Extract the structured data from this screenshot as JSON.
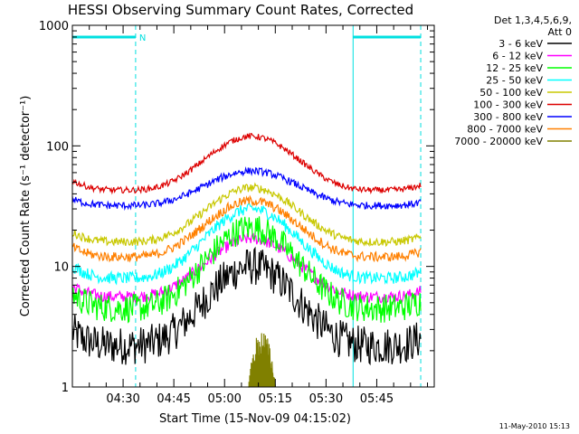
{
  "chart_data": {
    "type": "line",
    "title": "HESSI Observing Summary Count Rates, Corrected",
    "xlabel": "Start Time (15-Nov-09 04:15:02)",
    "ylabel": "Corrected Count Rate (s⁻¹ detector⁻¹)",
    "y_scale": "log",
    "ylim": [
      1,
      1000
    ],
    "xlim_min": [
      0,
      107
    ],
    "x_tick_labels": [
      "04:30",
      "04:45",
      "05:00",
      "05:15",
      "05:30",
      "05:45"
    ],
    "x_tick_values_min": [
      15,
      30,
      45,
      60,
      75,
      90
    ],
    "y_tick_labels": [
      "1",
      "10",
      "100",
      "1000"
    ],
    "y_tick_values": [
      1,
      10,
      100,
      1000
    ],
    "legend": {
      "header": [
        "Det 1,3,4,5,6,9,",
        "Att 0"
      ],
      "placement": "right"
    },
    "series": [
      {
        "name": "3 - 6 keV",
        "color": "#000000",
        "min": 2.2,
        "max": 10,
        "noise": 0.16
      },
      {
        "name": "6 - 12 keV",
        "color": "#ff00ff",
        "min": 5.6,
        "max": 17,
        "noise": 0.05
      },
      {
        "name": "12 - 25 keV",
        "color": "#00ff00",
        "min": 4.5,
        "max": 21,
        "noise": 0.12
      },
      {
        "name": "25 - 50 keV",
        "color": "#00ffff",
        "min": 8.0,
        "max": 30,
        "noise": 0.05
      },
      {
        "name": "50 - 100 keV",
        "color": "#c8c800",
        "min": 16,
        "max": 45,
        "noise": 0.035
      },
      {
        "name": "100 - 300 keV",
        "color": "#dd0000",
        "min": 43,
        "max": 120,
        "noise": 0.025
      },
      {
        "name": "300 - 800 keV",
        "color": "#0000ff",
        "min": 32,
        "max": 62,
        "noise": 0.03
      },
      {
        "name": "800 - 7000 keV",
        "color": "#ff8000",
        "min": 12,
        "max": 35,
        "noise": 0.04
      },
      {
        "name": "7000 - 20000 keV",
        "color": "#808000",
        "burst": {
          "start_min": 52,
          "end_min": 60,
          "max": 3
        }
      }
    ],
    "annotations": {
      "night_bars": [
        [
          0,
          18.7
        ],
        [
          83,
          103
        ]
      ],
      "saa_lines_min": [
        18.7,
        103
      ],
      "solid_line_min": 83,
      "night_label": "N",
      "color": "#00e0e0"
    }
  },
  "footer": {
    "date": "11-May-2010 15:13"
  }
}
